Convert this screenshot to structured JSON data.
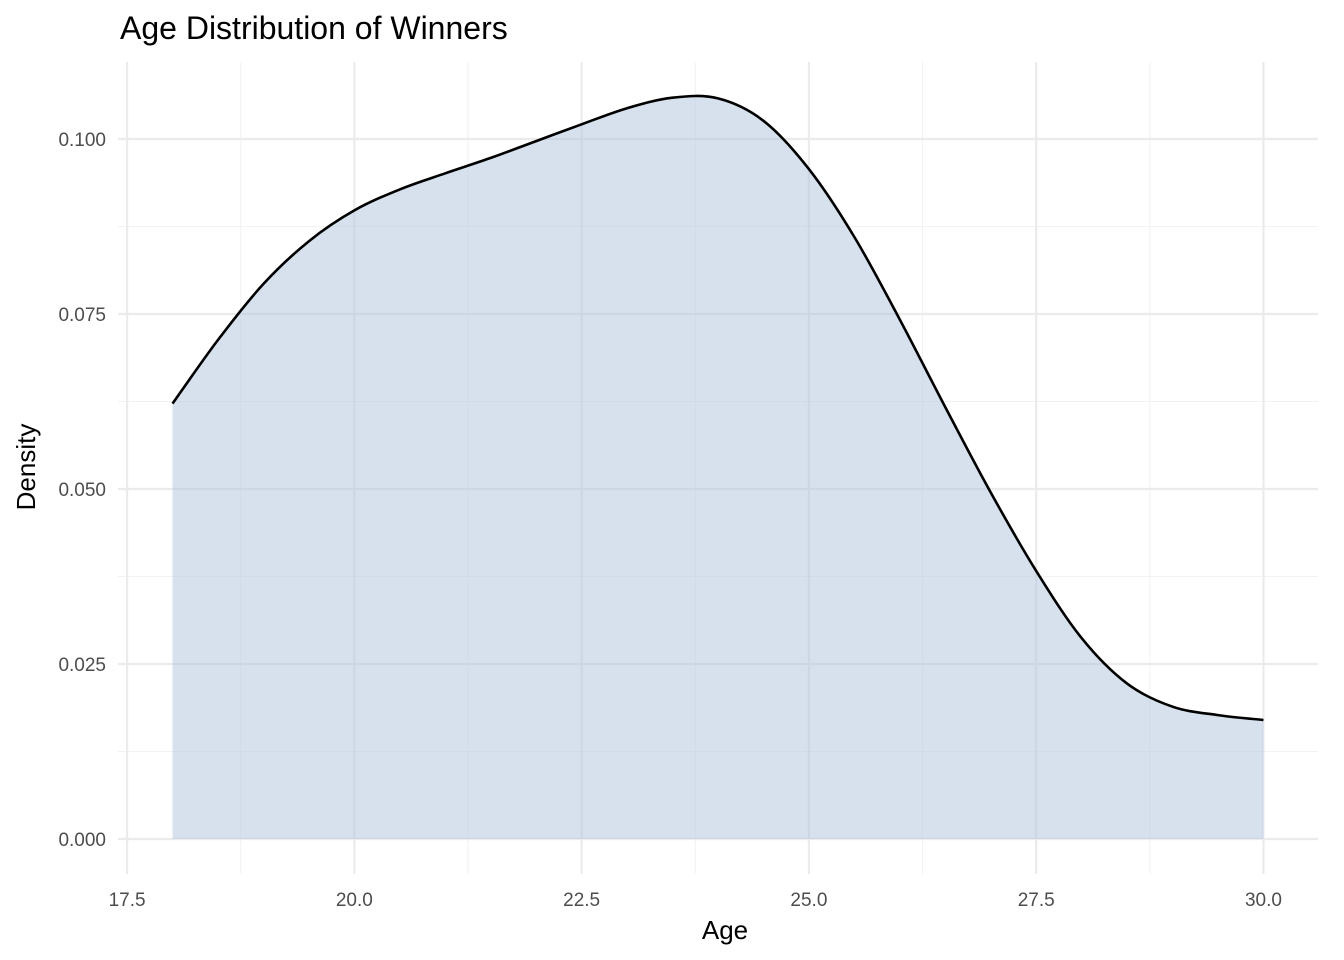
{
  "chart_data": {
    "type": "area",
    "title": "Age Distribution of Winners",
    "xlabel": "Age",
    "ylabel": "Density",
    "xlim": [
      17.4,
      30.6
    ],
    "ylim": [
      -0.005,
      0.111
    ],
    "x_ticks": [
      17.5,
      20.0,
      22.5,
      25.0,
      27.5,
      30.0
    ],
    "x_tick_labels": [
      "17.5",
      "20.0",
      "22.5",
      "25.0",
      "27.5",
      "30.0"
    ],
    "y_ticks": [
      0.0,
      0.025,
      0.05,
      0.075,
      0.1
    ],
    "y_tick_labels": [
      "0.000",
      "0.025",
      "0.050",
      "0.075",
      "0.100"
    ],
    "grid": true,
    "legend": "none",
    "fill_color": "#b0c4de",
    "fill_opacity": 0.5,
    "line_color": "#000000",
    "series": [
      {
        "x": [
          18.0,
          18.5,
          19.0,
          19.5,
          20.0,
          20.5,
          21.0,
          21.5,
          22.0,
          22.5,
          23.0,
          23.5,
          24.0,
          24.5,
          25.0,
          25.5,
          26.0,
          26.5,
          27.0,
          27.5,
          28.0,
          28.5,
          29.0,
          29.5,
          30.0
        ],
        "y": [
          0.0622,
          0.0713,
          0.0793,
          0.0854,
          0.0898,
          0.0928,
          0.0951,
          0.0973,
          0.0997,
          0.1021,
          0.1044,
          0.1059,
          0.1058,
          0.1026,
          0.0957,
          0.086,
          0.0742,
          0.0617,
          0.0495,
          0.0383,
          0.0287,
          0.0222,
          0.0189,
          0.0177,
          0.017
        ]
      }
    ]
  }
}
